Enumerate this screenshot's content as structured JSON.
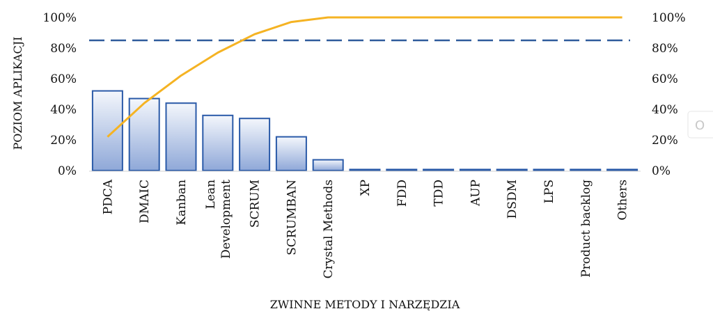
{
  "chart_data": {
    "type": "bar",
    "title": "",
    "xlabel": "ZWINNE METODY I NARZĘDZIA",
    "ylabel": "POZIOM APLIKACJI",
    "categories": [
      "PDCA",
      "DMAIC",
      "Kanban",
      "Lean Development",
      "SCRUM",
      "SCRUMBAN",
      "Crystal Methods",
      "XP",
      "FDD",
      "TDD",
      "AUP",
      "DSDM",
      "LPS",
      "Product backlog",
      "Others"
    ],
    "category_label_lines": [
      [
        "PDCA"
      ],
      [
        "DMAIC"
      ],
      [
        "Kanban"
      ],
      [
        "Lean",
        "Development"
      ],
      [
        "SCRUM"
      ],
      [
        "SCRUMBAN"
      ],
      [
        "Crystal Methods"
      ],
      [
        "XP"
      ],
      [
        "FDD"
      ],
      [
        "TDD"
      ],
      [
        "AUP"
      ],
      [
        "DSDM"
      ],
      [
        "LPS"
      ],
      [
        "Product backlog"
      ],
      [
        "Others"
      ]
    ],
    "series": [
      {
        "type": "bar",
        "axis": "left",
        "values": [
          52,
          47,
          44,
          36,
          34,
          22,
          7,
          0.5,
          0.5,
          0.5,
          0.5,
          0.5,
          0.5,
          0.5,
          0.5
        ]
      },
      {
        "type": "line",
        "axis": "right",
        "values": [
          22,
          44,
          62,
          77,
          89,
          97,
          100,
          100,
          100,
          100,
          100,
          100,
          100,
          100,
          100
        ]
      },
      {
        "type": "reference-line",
        "axis": "left",
        "value": 85
      }
    ],
    "y_ticks": [
      "0%",
      "20%",
      "40%",
      "60%",
      "80%",
      "100%"
    ],
    "y2_ticks": [
      "0%",
      "20%",
      "40%",
      "60%",
      "80%",
      "100%"
    ],
    "ylim": [
      0,
      100
    ],
    "y2lim": [
      0,
      100
    ],
    "grid": false,
    "legend": "none",
    "colors": {
      "bar_fill_top": "#f4f7fc",
      "bar_fill_bottom": "#8fa8d8",
      "bar_stroke": "#2a5aa8",
      "cumulative_line": "#f5b323",
      "reference_line": "#2f5b9c",
      "axis": "#d0d0d0"
    }
  },
  "edge_fragment": "O"
}
